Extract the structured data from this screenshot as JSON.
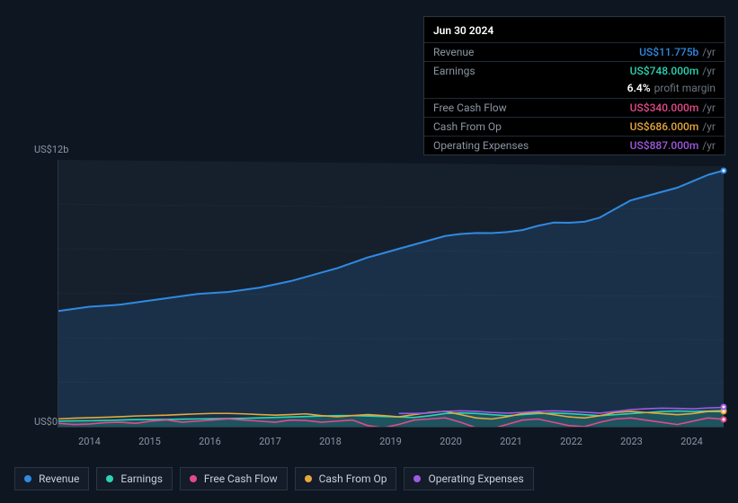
{
  "colors": {
    "background": "#0e1621",
    "panel_bg": "#000000",
    "border": "#2a3642",
    "text_muted": "#8a96a3",
    "text_dim": "#6a7682",
    "text": "#ffffff",
    "grid": "#1b2632"
  },
  "tooltip": {
    "title": "Jun 30 2024",
    "rows": [
      {
        "label": "Revenue",
        "value": "US$11.775b",
        "unit": "/yr",
        "color": "#2f8ae2"
      },
      {
        "label": "Earnings",
        "value": "US$748.000m",
        "unit": "/yr",
        "color": "#2bd4b2",
        "sub_pct": "6.4%",
        "sub_label": "profit margin"
      },
      {
        "label": "Free Cash Flow",
        "value": "US$340.000m",
        "unit": "/yr",
        "color": "#e24a8a"
      },
      {
        "label": "Cash From Op",
        "value": "US$686.000m",
        "unit": "/yr",
        "color": "#e6a83c"
      },
      {
        "label": "Operating Expenses",
        "value": "US$887.000m",
        "unit": "/yr",
        "color": "#9d5ae2"
      }
    ]
  },
  "chart": {
    "type": "area-line",
    "y_top_label": "US$12b",
    "y_bottom_label": "US$0",
    "ylim": [
      0,
      12
    ],
    "x_labels": [
      "2014",
      "2015",
      "2016",
      "2017",
      "2018",
      "2019",
      "2020",
      "2021",
      "2022",
      "2023",
      "2024"
    ],
    "hover_x": 1.0,
    "skewed_top_x0": 0,
    "skewed_top_x1": 0.95,
    "series": [
      {
        "key": "revenue",
        "label": "Revenue",
        "color": "#2f8ae2",
        "fill_opacity": 0.16,
        "line_width": 2,
        "values": [
          5.2,
          5.3,
          5.4,
          5.45,
          5.5,
          5.6,
          5.7,
          5.8,
          5.9,
          6.0,
          6.05,
          6.1,
          6.2,
          6.3,
          6.45,
          6.6,
          6.8,
          7.0,
          7.2,
          7.45,
          7.7,
          7.9,
          8.1,
          8.3,
          8.5,
          8.7,
          8.8,
          8.85,
          8.85,
          8.9,
          9.0,
          9.2,
          9.35,
          9.35,
          9.4,
          9.6,
          10.0,
          10.4,
          10.6,
          10.8,
          11.0,
          11.3,
          11.6,
          11.8
        ]
      },
      {
        "key": "earnings",
        "label": "Earnings",
        "color": "#2bd4b2",
        "fill_opacity": 0.22,
        "line_width": 1.6,
        "values": [
          0.25,
          0.26,
          0.27,
          0.28,
          0.3,
          0.32,
          0.32,
          0.33,
          0.34,
          0.35,
          0.36,
          0.37,
          0.38,
          0.4,
          0.42,
          0.44,
          0.46,
          0.48,
          0.5,
          0.5,
          0.48,
          0.46,
          0.44,
          0.42,
          0.5,
          0.6,
          0.62,
          0.6,
          0.55,
          0.5,
          0.55,
          0.6,
          0.62,
          0.6,
          0.55,
          0.5,
          0.55,
          0.6,
          0.65,
          0.7,
          0.72,
          0.7,
          0.72,
          0.75
        ]
      },
      {
        "key": "fcf",
        "label": "Free Cash Flow",
        "color": "#e24a8a",
        "fill_opacity": 0.0,
        "line_width": 1.6,
        "values": [
          0.15,
          0.1,
          0.12,
          0.18,
          0.2,
          0.15,
          0.25,
          0.3,
          0.2,
          0.25,
          0.3,
          0.35,
          0.3,
          0.25,
          0.2,
          0.3,
          0.28,
          0.2,
          0.25,
          0.3,
          0.05,
          -0.05,
          0.1,
          0.3,
          0.35,
          0.4,
          0.2,
          -0.05,
          -0.1,
          0.1,
          0.3,
          0.35,
          0.2,
          0.05,
          0.0,
          0.2,
          0.35,
          0.4,
          0.3,
          0.2,
          0.1,
          0.25,
          0.4,
          0.34
        ]
      },
      {
        "key": "cfo",
        "label": "Cash From Op",
        "color": "#e6a83c",
        "fill_opacity": 0.0,
        "line_width": 1.6,
        "values": [
          0.35,
          0.38,
          0.4,
          0.42,
          0.45,
          0.48,
          0.5,
          0.52,
          0.55,
          0.58,
          0.6,
          0.6,
          0.58,
          0.55,
          0.52,
          0.55,
          0.58,
          0.5,
          0.45,
          0.5,
          0.55,
          0.5,
          0.45,
          0.55,
          0.65,
          0.7,
          0.55,
          0.4,
          0.35,
          0.45,
          0.6,
          0.65,
          0.55,
          0.45,
          0.4,
          0.5,
          0.65,
          0.7,
          0.65,
          0.6,
          0.55,
          0.6,
          0.7,
          0.69
        ]
      },
      {
        "key": "opex",
        "label": "Operating Expenses",
        "color": "#9d5ae2",
        "fill_opacity": 0.0,
        "line_width": 1.6,
        "values": [
          null,
          null,
          null,
          null,
          null,
          null,
          null,
          null,
          null,
          null,
          null,
          null,
          null,
          null,
          null,
          null,
          null,
          null,
          null,
          null,
          null,
          null,
          0.6,
          0.6,
          0.62,
          0.7,
          0.72,
          0.7,
          0.65,
          0.62,
          0.65,
          0.7,
          0.72,
          0.7,
          0.66,
          0.62,
          0.7,
          0.78,
          0.82,
          0.85,
          0.84,
          0.82,
          0.86,
          0.89
        ]
      }
    ]
  },
  "legend": [
    {
      "key": "revenue",
      "label": "Revenue",
      "color": "#2f8ae2"
    },
    {
      "key": "earnings",
      "label": "Earnings",
      "color": "#2bd4b2"
    },
    {
      "key": "fcf",
      "label": "Free Cash Flow",
      "color": "#e24a8a"
    },
    {
      "key": "cfo",
      "label": "Cash From Op",
      "color": "#e6a83c"
    },
    {
      "key": "opex",
      "label": "Operating Expenses",
      "color": "#9d5ae2"
    }
  ]
}
